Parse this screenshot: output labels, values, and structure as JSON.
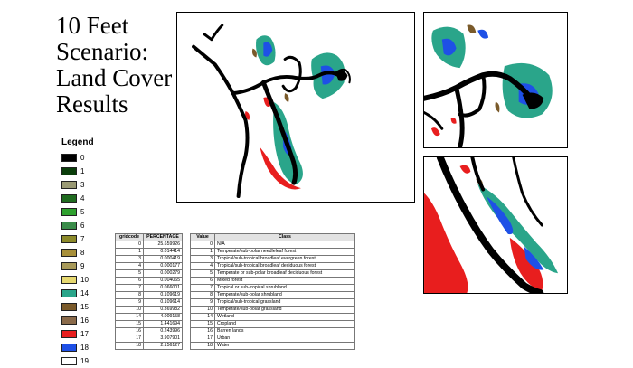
{
  "title_lines": [
    "10 Feet",
    "Scenario:",
    "Land Cover",
    "Results"
  ],
  "legend": {
    "title": "Legend",
    "items": [
      {
        "label": "0",
        "color": "#000000"
      },
      {
        "label": "1",
        "color": "#0a3d0a"
      },
      {
        "label": "3",
        "color": "#9a9a74"
      },
      {
        "label": "4",
        "color": "#1f6b1f"
      },
      {
        "label": "5",
        "color": "#2fa12f"
      },
      {
        "label": "6",
        "color": "#3a8c4a"
      },
      {
        "label": "7",
        "color": "#8c8a2a"
      },
      {
        "label": "8",
        "color": "#a8903a"
      },
      {
        "label": "9",
        "color": "#a89a5a"
      },
      {
        "label": "10",
        "color": "#e6d870"
      },
      {
        "label": "14",
        "color": "#2aa58a"
      },
      {
        "label": "15",
        "color": "#7a5a2a"
      },
      {
        "label": "16",
        "color": "#8a6a4a"
      },
      {
        "label": "17",
        "color": "#e81e1e"
      },
      {
        "label": "18",
        "color": "#1e50e6"
      },
      {
        "label": "19",
        "color": "#ffffff"
      }
    ]
  },
  "percentage_table": {
    "headers": [
      "gridcode",
      "PERCENTAGE"
    ],
    "rows": [
      [
        "0",
        "25.659926"
      ],
      [
        "1",
        "0.014414"
      ],
      [
        "3",
        "0.000419"
      ],
      [
        "4",
        "0.000177"
      ],
      [
        "5",
        "0.000279"
      ],
      [
        "6",
        "0.004065"
      ],
      [
        "7",
        "0.066001"
      ],
      [
        "8",
        "0.109619"
      ],
      [
        "9",
        "0.109614"
      ],
      [
        "10",
        "0.369982"
      ],
      [
        "14",
        "4.009158"
      ],
      [
        "15",
        "1.441694"
      ],
      [
        "16",
        "0.243996"
      ],
      [
        "17",
        "3.907901"
      ],
      [
        "18",
        "2.156127"
      ]
    ]
  },
  "class_table": {
    "headers": [
      "Value",
      "Class"
    ],
    "rows": [
      [
        "0",
        "N/A"
      ],
      [
        "1",
        "Temperate/sub-polar needleleaf forest"
      ],
      [
        "3",
        "Tropical/sub-tropical broadleaf evergreen forest"
      ],
      [
        "4",
        "Tropical/sub-tropical broadleaf deciduous forest"
      ],
      [
        "5",
        "Temperate or sub-polar broadleaf deciduous forest"
      ],
      [
        "6",
        "Mixed forest"
      ],
      [
        "7",
        "Tropical or sub-tropical shrubland"
      ],
      [
        "8",
        "Temperate/sub-polar shrubland"
      ],
      [
        "9",
        "Tropical/sub-tropical grassland"
      ],
      [
        "10",
        "Temperate/sub-polar grassland"
      ],
      [
        "14",
        "Wetland"
      ],
      [
        "15",
        "Cropland"
      ],
      [
        "16",
        "Barren lands"
      ],
      [
        "17",
        "Urban"
      ],
      [
        "18",
        "Water"
      ]
    ]
  }
}
